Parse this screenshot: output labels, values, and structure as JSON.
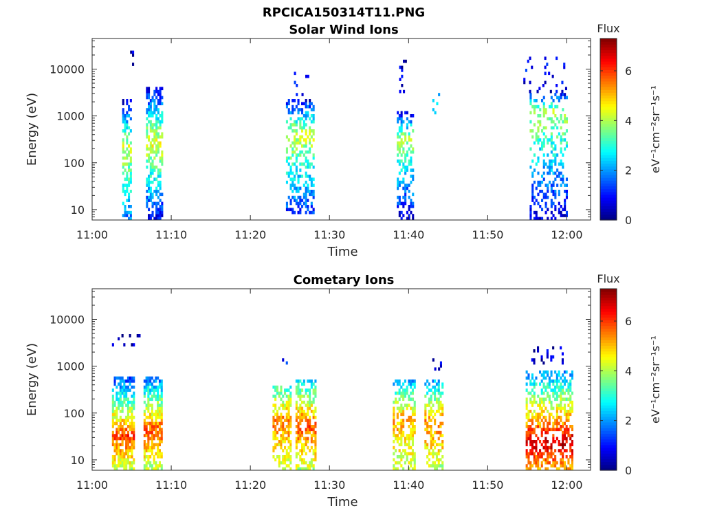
{
  "figure_title": "RPCICA150314T11.PNG",
  "chart_data": [
    {
      "type": "heatmap",
      "title": "Solar Wind Ions",
      "xlabel": "Time",
      "ylabel": "Energy (eV)",
      "x_ticks": [
        "11:00",
        "11:10",
        "11:20",
        "11:30",
        "11:40",
        "11:50",
        "12:00"
      ],
      "x_range_minutes": [
        0,
        63
      ],
      "y_scale": "log",
      "y_ticks": [
        "10",
        "100",
        "1000",
        "10000"
      ],
      "y_range": [
        6,
        45000
      ],
      "colorbar": {
        "label": "Flux",
        "unit": "eV⁻¹cm⁻²sr⁻¹s⁻¹",
        "ticks": [
          "0",
          "2",
          "4",
          "6"
        ],
        "range": [
          0,
          7.3
        ],
        "colormap": "jet"
      },
      "bursts": [
        {
          "t": [
            3.8,
            5.0
          ],
          "e": [
            6,
            2000
          ],
          "peak_e": 200,
          "peak_flux": 4.2,
          "low_flux": 0.6,
          "low_e_flux": 1.8,
          "density": 0.55
        },
        {
          "t": [
            4.8,
            5.4
          ],
          "e": [
            12000,
            23000
          ],
          "peak_e": 20000,
          "peak_flux": 0.5,
          "low_flux": 0.3,
          "low_e_flux": 0.5,
          "density": 0.35
        },
        {
          "t": [
            6.8,
            8.8
          ],
          "e": [
            6,
            4000
          ],
          "peak_e": 250,
          "peak_flux": 4.5,
          "low_flux": 0.6,
          "low_e_flux": 0.8,
          "density": 0.55
        },
        {
          "t": [
            24.5,
            28.0
          ],
          "e": [
            8,
            2000
          ],
          "peak_e": 400,
          "peak_flux": 4.2,
          "low_flux": 0.8,
          "low_e_flux": 1.2,
          "density": 0.42
        },
        {
          "t": [
            25.5,
            27.5
          ],
          "e": [
            2500,
            8000
          ],
          "peak_e": 4000,
          "peak_flux": 1.5,
          "low_flux": 1.0,
          "low_e_flux": 1.0,
          "density": 0.15
        },
        {
          "t": [
            38.5,
            40.5
          ],
          "e": [
            6,
            1200
          ],
          "peak_e": 300,
          "peak_flux": 4.0,
          "low_flux": 0.6,
          "low_e_flux": 0.6,
          "density": 0.42
        },
        {
          "t": [
            38.8,
            40.2
          ],
          "e": [
            3000,
            15000
          ],
          "peak_e": 8000,
          "peak_flux": 0.6,
          "low_flux": 0.4,
          "low_e_flux": 0.4,
          "density": 0.12
        },
        {
          "t": [
            43.0,
            44.0
          ],
          "e": [
            1000,
            3000
          ],
          "peak_e": 1500,
          "peak_flux": 2.8,
          "low_flux": 2.0,
          "low_e_flux": 2.0,
          "density": 0.2
        },
        {
          "t": [
            55.3,
            60.0
          ],
          "e": [
            6,
            3000
          ],
          "peak_e": 1200,
          "peak_flux": 4.0,
          "low_flux": 0.6,
          "low_e_flux": 0.6,
          "density": 0.33
        },
        {
          "t": [
            54.5,
            59.8
          ],
          "e": [
            3000,
            18000
          ],
          "peak_e": 8000,
          "peak_flux": 1.0,
          "low_flux": 0.6,
          "low_e_flux": 0.6,
          "density": 0.1
        }
      ]
    },
    {
      "type": "heatmap",
      "title": "Cometary Ions",
      "xlabel": "Time",
      "ylabel": "Energy (eV)",
      "x_ticks": [
        "11:00",
        "11:10",
        "11:20",
        "11:30",
        "11:40",
        "11:50",
        "12:00"
      ],
      "x_range_minutes": [
        0,
        63
      ],
      "y_scale": "log",
      "y_ticks": [
        "10",
        "100",
        "1000",
        "10000"
      ],
      "y_range": [
        6,
        45000
      ],
      "colorbar": {
        "label": "Flux",
        "unit": "eV⁻¹cm⁻²sr⁻¹s⁻¹",
        "ticks": [
          "0",
          "2",
          "4",
          "6"
        ],
        "range": [
          0,
          7.3
        ],
        "colormap": "jet"
      },
      "bursts": [
        {
          "t": [
            2.5,
            5.2
          ],
          "e": [
            6,
            600
          ],
          "peak_e": 30,
          "peak_flux": 6.0,
          "low_flux": 1.2,
          "low_e_flux": 4.0,
          "density": 0.7
        },
        {
          "t": [
            2.5,
            6.0
          ],
          "e": [
            2000,
            4500
          ],
          "peak_e": 3500,
          "peak_flux": 0.6,
          "low_flux": 0.4,
          "low_e_flux": 0.4,
          "density": 0.12
        },
        {
          "t": [
            6.5,
            8.8
          ],
          "e": [
            6,
            600
          ],
          "peak_e": 40,
          "peak_flux": 5.8,
          "low_flux": 1.5,
          "low_e_flux": 4.0,
          "density": 0.7
        },
        {
          "t": [
            22.8,
            25.0
          ],
          "e": [
            6,
            350
          ],
          "peak_e": 60,
          "peak_flux": 5.5,
          "low_flux": 3.0,
          "low_e_flux": 4.0,
          "density": 0.55
        },
        {
          "t": [
            25.7,
            28.2
          ],
          "e": [
            6,
            500
          ],
          "peak_e": 50,
          "peak_flux": 5.8,
          "low_flux": 2.5,
          "low_e_flux": 4.0,
          "density": 0.6
        },
        {
          "t": [
            24.0,
            25.0
          ],
          "e": [
            900,
            1400
          ],
          "peak_e": 1100,
          "peak_flux": 1.0,
          "low_flux": 1.0,
          "low_e_flux": 1.0,
          "density": 0.2
        },
        {
          "t": [
            38.0,
            40.8
          ],
          "e": [
            6,
            500
          ],
          "peak_e": 70,
          "peak_flux": 5.2,
          "low_flux": 2.0,
          "low_e_flux": 4.0,
          "density": 0.5
        },
        {
          "t": [
            42.0,
            44.2
          ],
          "e": [
            6,
            500
          ],
          "peak_e": 60,
          "peak_flux": 5.5,
          "low_flux": 2.0,
          "low_e_flux": 4.0,
          "density": 0.5
        },
        {
          "t": [
            43.0,
            44.0
          ],
          "e": [
            800,
            1400
          ],
          "peak_e": 1000,
          "peak_flux": 0.5,
          "low_flux": 0.5,
          "low_e_flux": 0.5,
          "density": 0.2
        },
        {
          "t": [
            54.8,
            60.8
          ],
          "e": [
            6,
            700
          ],
          "peak_e": 20,
          "peak_flux": 6.8,
          "low_flux": 2.0,
          "low_e_flux": 5.0,
          "density": 0.55
        },
        {
          "t": [
            55.5,
            59.5
          ],
          "e": [
            1100,
            2600
          ],
          "peak_e": 1500,
          "peak_flux": 0.6,
          "low_flux": 0.4,
          "low_e_flux": 0.4,
          "density": 0.15
        }
      ]
    }
  ]
}
